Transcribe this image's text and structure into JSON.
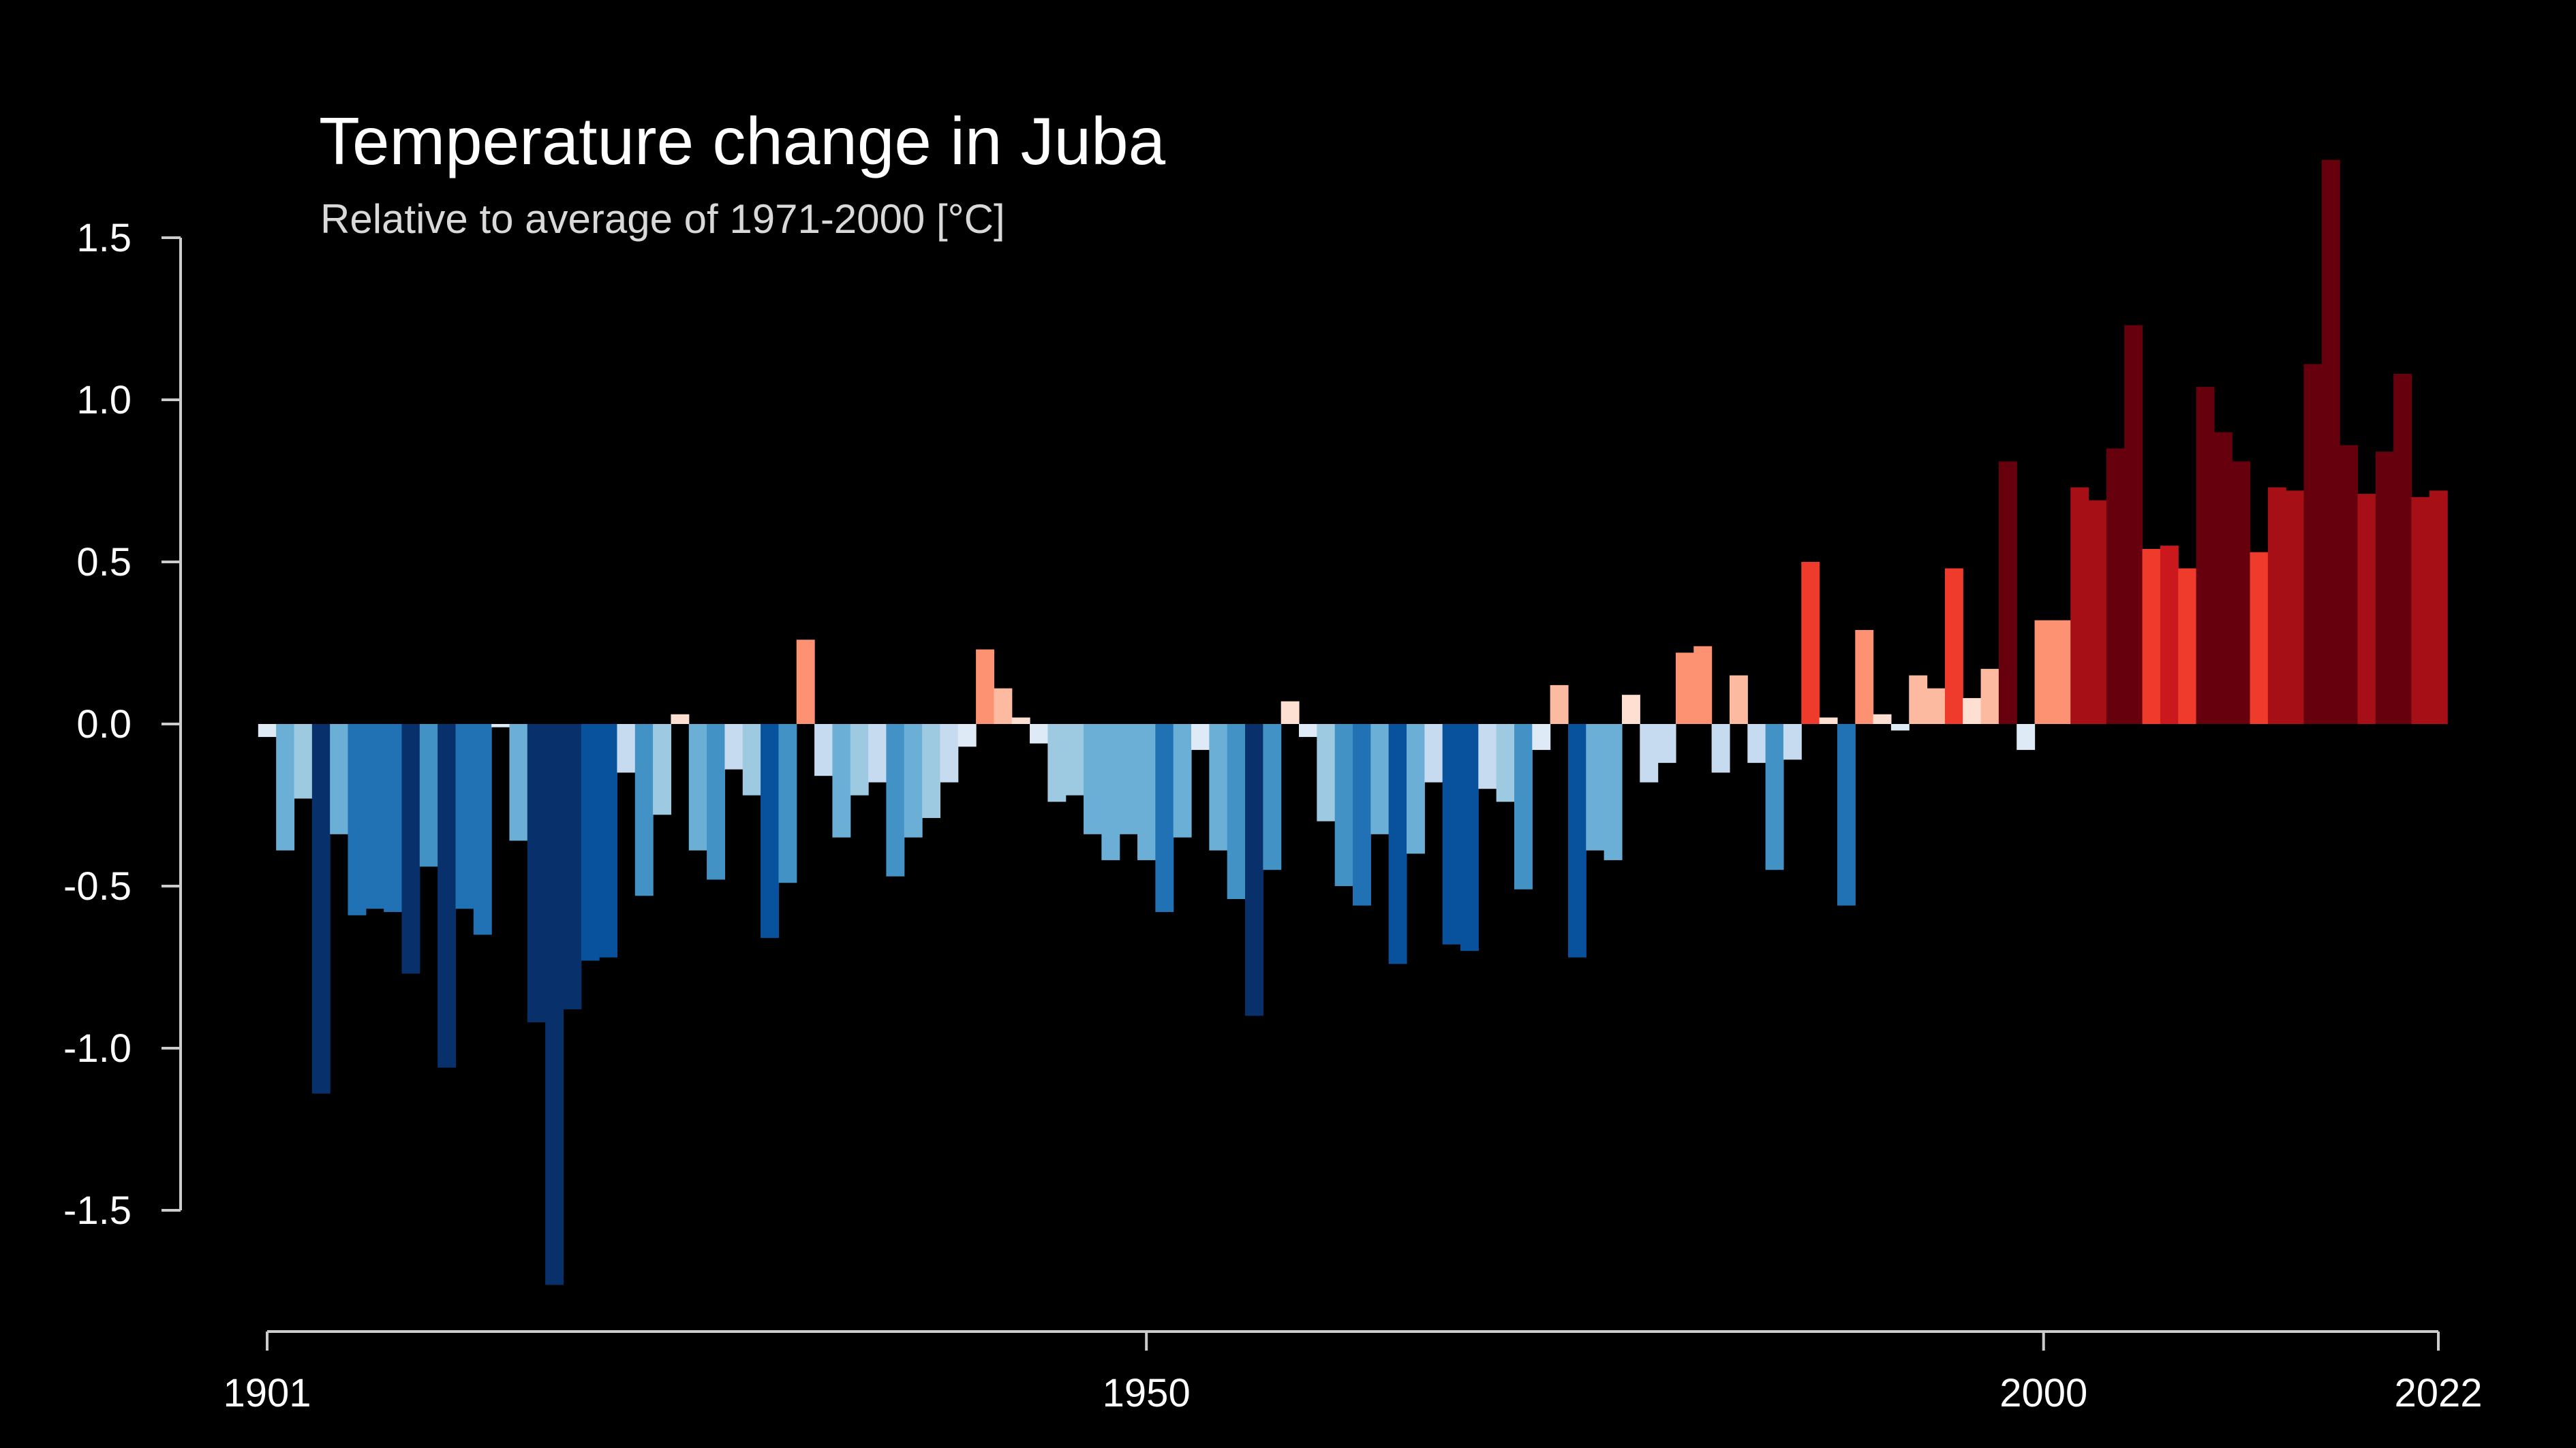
{
  "colors": {
    "background": "#000000",
    "axis": "#cccccc",
    "text": "#ffffff"
  },
  "chart_data": {
    "type": "bar",
    "title": "Temperature change in Juba",
    "subtitle": "Relative to average of 1971-2000  [°C]",
    "xlabel": "",
    "ylabel": "",
    "x_start": 1901,
    "x_end": 2022,
    "xlim": [
      1901,
      2022
    ],
    "ylim": [
      -1.7,
      1.5
    ],
    "y_ticks": [
      1.5,
      1.0,
      0.5,
      0.0,
      -0.5,
      -1.0,
      -1.5
    ],
    "y_tick_labels": [
      "1.5",
      "1.0",
      "0.5",
      "0.0",
      "-0.5",
      "-1.0",
      "-1.5"
    ],
    "x_ticks": [
      1901,
      1950,
      2000,
      2022
    ],
    "x_tick_labels": [
      "1901",
      "1950",
      "2000",
      "2022"
    ],
    "grid": false,
    "legend": "none",
    "color_scale": "blue (colder) to red (warmer)",
    "values": [
      -0.04,
      -0.39,
      -0.23,
      -1.14,
      -0.34,
      -0.59,
      -0.57,
      -0.58,
      -0.77,
      -0.44,
      -1.06,
      -0.57,
      -0.65,
      -0.01,
      -0.36,
      -0.92,
      -1.73,
      -0.88,
      -0.73,
      -0.72,
      -0.15,
      -0.53,
      -0.28,
      0.03,
      -0.39,
      -0.48,
      -0.14,
      -0.22,
      -0.66,
      -0.49,
      0.26,
      -0.16,
      -0.35,
      -0.22,
      -0.18,
      -0.47,
      -0.35,
      -0.29,
      -0.18,
      -0.07,
      0.23,
      0.11,
      0.02,
      -0.06,
      -0.24,
      -0.22,
      -0.34,
      -0.42,
      -0.34,
      -0.42,
      -0.58,
      -0.35,
      -0.08,
      -0.39,
      -0.54,
      -0.9,
      -0.45,
      0.07,
      -0.04,
      -0.3,
      -0.5,
      -0.56,
      -0.34,
      -0.74,
      -0.4,
      -0.18,
      -0.68,
      -0.7,
      -0.2,
      -0.24,
      -0.51,
      -0.08,
      0.12,
      -0.72,
      -0.39,
      -0.42,
      0.09,
      -0.18,
      -0.12,
      0.22,
      0.24,
      -0.15,
      0.15,
      -0.12,
      -0.45,
      -0.11,
      0.5,
      0.02,
      -0.56,
      0.29,
      0.03,
      -0.02,
      0.15,
      0.11,
      0.48,
      0.08,
      0.17,
      0.81,
      -0.08,
      0.32,
      0.32,
      0.73,
      0.69,
      0.85,
      1.23,
      0.54,
      0.55,
      0.48,
      1.04,
      0.9,
      0.81,
      0.53,
      0.73,
      0.72,
      1.11,
      1.74,
      0.86,
      0.71,
      0.84,
      1.08,
      0.7,
      0.72
    ]
  }
}
